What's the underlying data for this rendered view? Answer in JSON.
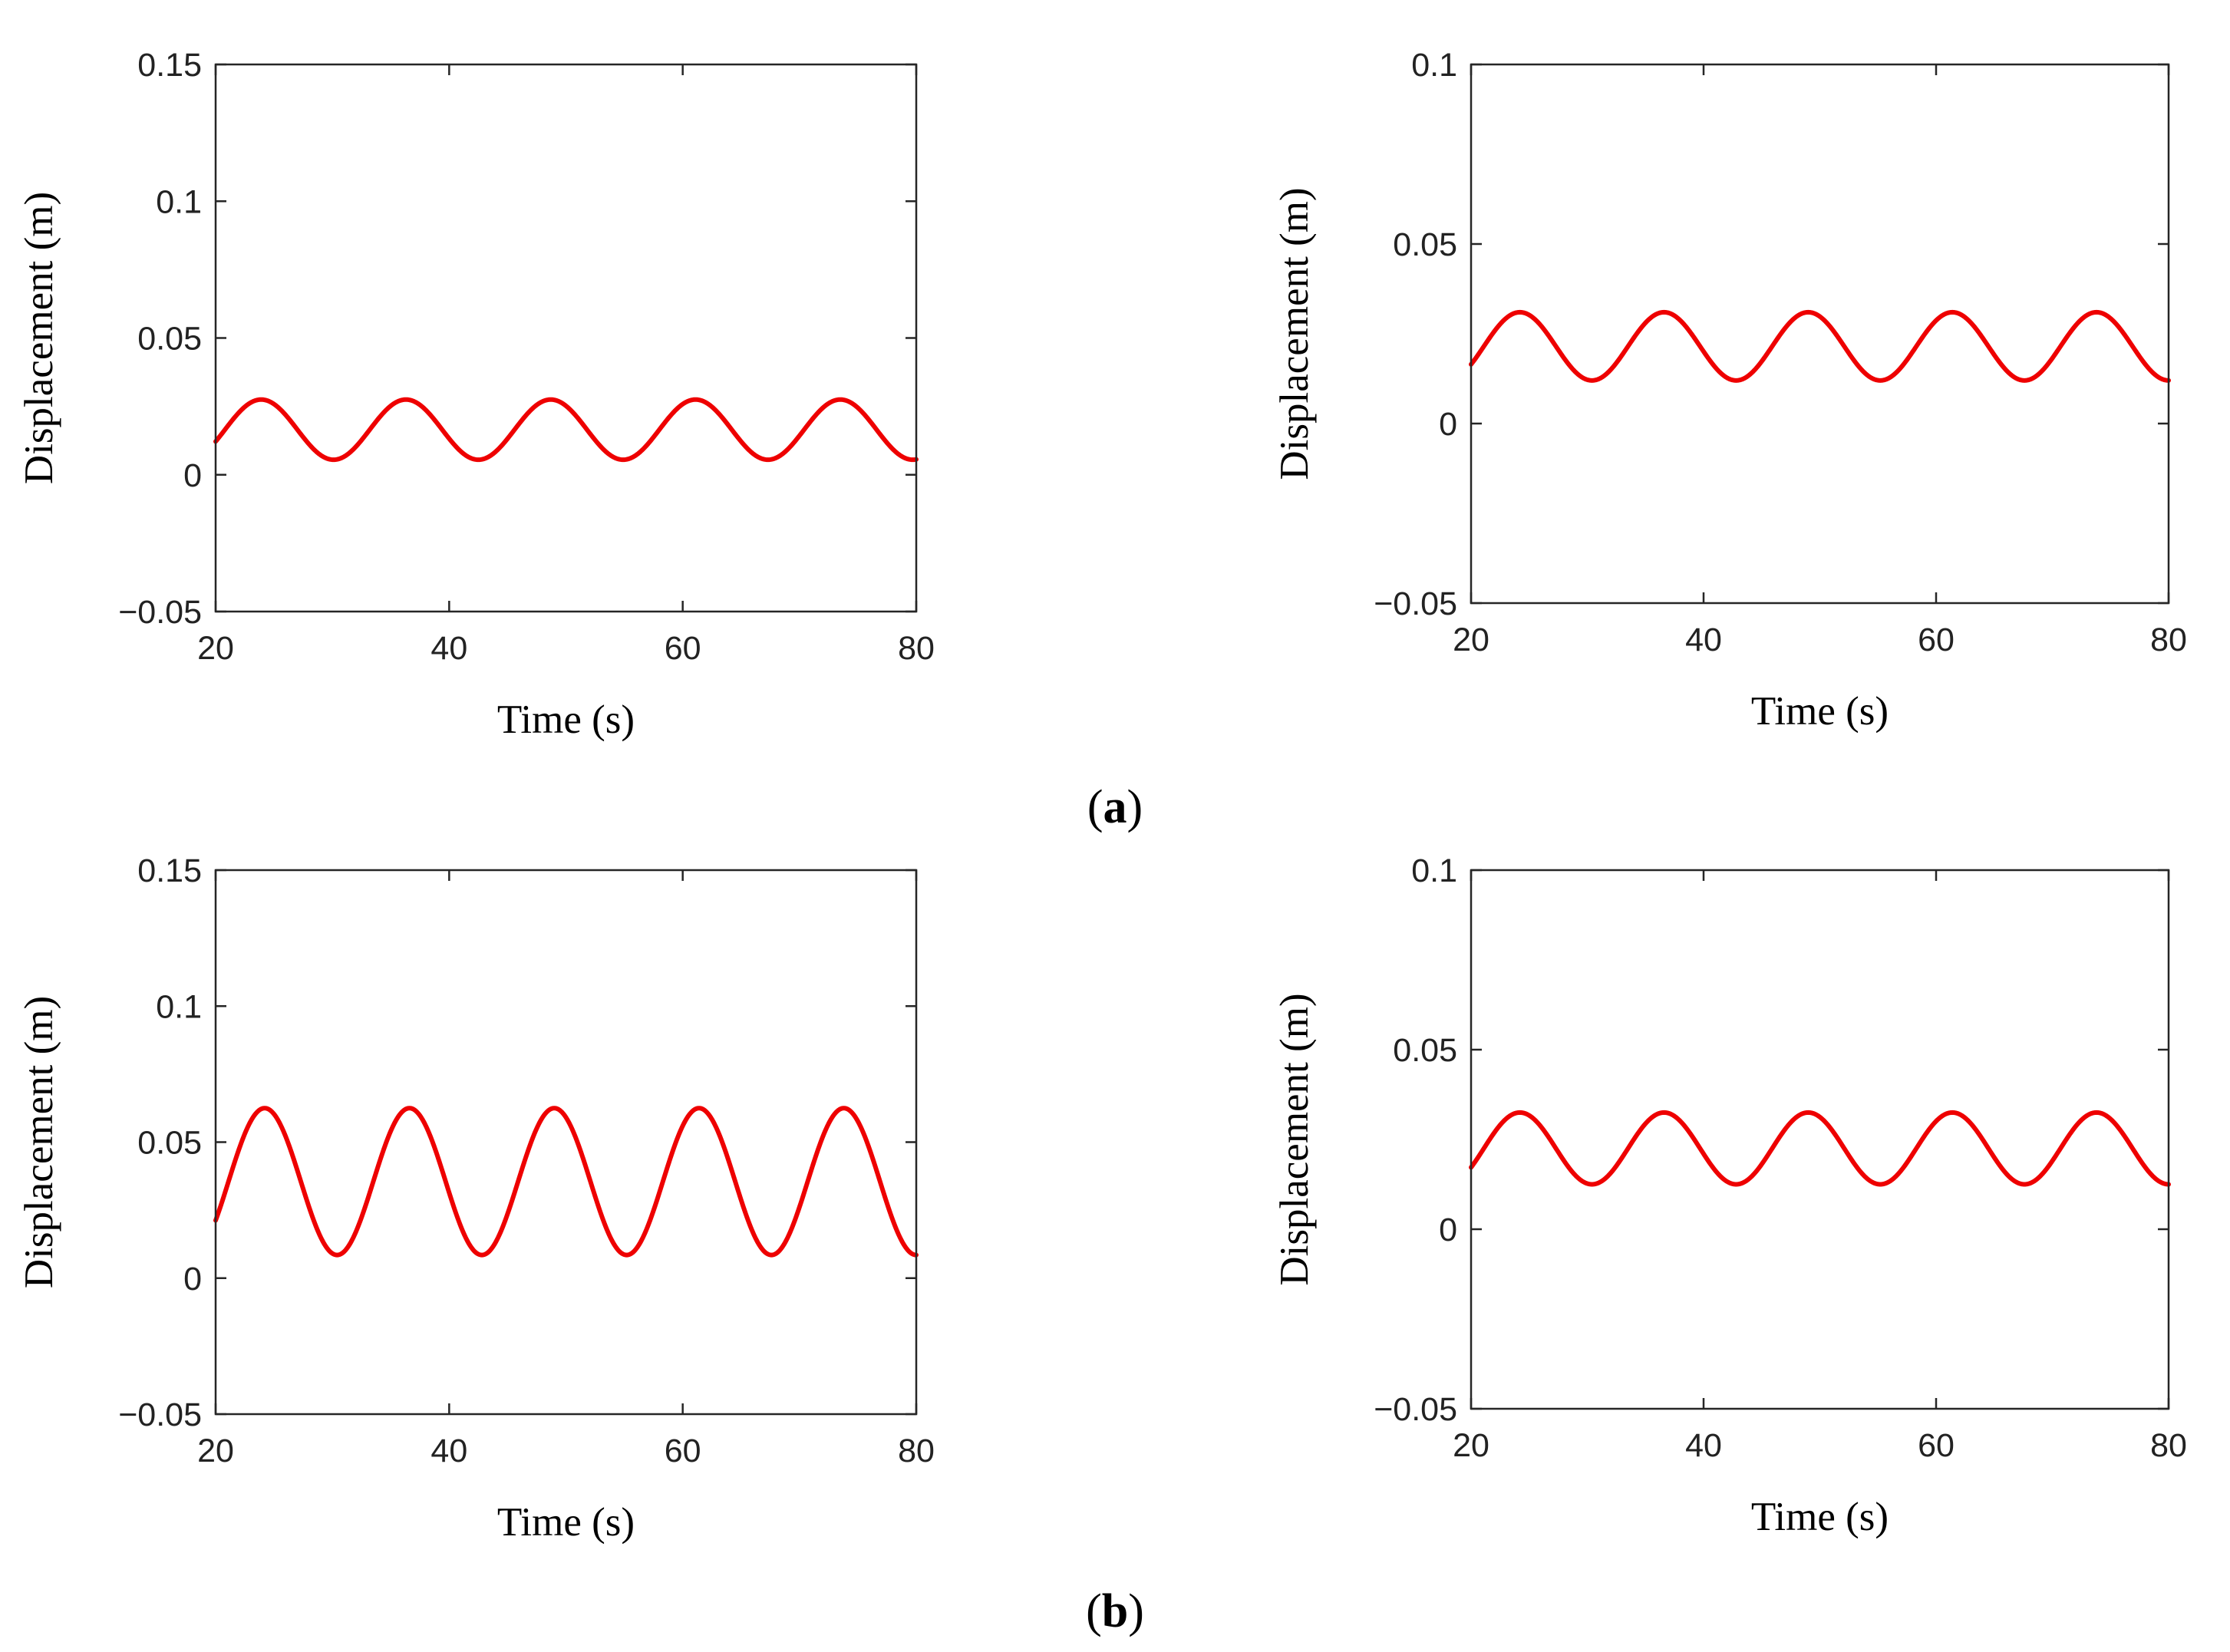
{
  "figure": {
    "labels": [
      {
        "open": "(",
        "letter": "a",
        "close": ")"
      },
      {
        "open": "(",
        "letter": "b",
        "close": ")"
      }
    ]
  },
  "colors": {
    "series": "#ee0000",
    "axis": "#262626",
    "background": "#ffffff"
  },
  "chart_data": [
    {
      "type": "line",
      "panel": "a",
      "position": "left",
      "xlabel": "Time (s)",
      "ylabel": "Displacement (m)",
      "xlim": [
        20,
        80
      ],
      "ylim": [
        -0.05,
        0.15
      ],
      "xticks": [
        20,
        40,
        60,
        80
      ],
      "xtick_labels": [
        "20",
        "40",
        "60",
        "80"
      ],
      "yticks": [
        -0.05,
        0,
        0.05,
        0.1,
        0.15
      ],
      "ytick_labels": [
        "−0.05",
        "0",
        "0.05",
        "0.1",
        "0.15"
      ],
      "grid": false,
      "series": [
        {
          "name": "displacement",
          "model": "sinusoid",
          "mean": 0.0165,
          "amplitude": 0.011,
          "period": 12.4,
          "peak_times": [
            23.9,
            36.3,
            48.7,
            61.1,
            73.5
          ]
        }
      ]
    },
    {
      "type": "line",
      "panel": "a",
      "position": "right",
      "xlabel": "Time (s)",
      "ylabel": "Displacement (m)",
      "xlim": [
        20,
        80
      ],
      "ylim": [
        -0.05,
        0.1
      ],
      "xticks": [
        20,
        40,
        60,
        80
      ],
      "xtick_labels": [
        "20",
        "40",
        "60",
        "80"
      ],
      "yticks": [
        -0.05,
        0,
        0.05,
        0.1
      ],
      "ytick_labels": [
        "−0.05",
        "0",
        "0.05",
        "0.1"
      ],
      "grid": false,
      "series": [
        {
          "name": "displacement",
          "model": "sinusoid",
          "mean": 0.0215,
          "amplitude": 0.0095,
          "period": 12.4,
          "peak_times": [
            24.2,
            36.6,
            49.0,
            61.4,
            73.8
          ]
        }
      ]
    },
    {
      "type": "line",
      "panel": "b",
      "position": "left",
      "xlabel": "Time (s)",
      "ylabel": "Displacement (m)",
      "xlim": [
        20,
        80
      ],
      "ylim": [
        -0.05,
        0.15
      ],
      "xticks": [
        20,
        40,
        60,
        80
      ],
      "xtick_labels": [
        "20",
        "40",
        "60",
        "80"
      ],
      "yticks": [
        -0.05,
        0,
        0.05,
        0.1,
        0.15
      ],
      "ytick_labels": [
        "−0.05",
        "0",
        "0.05",
        "0.1",
        "0.15"
      ],
      "grid": false,
      "series": [
        {
          "name": "displacement",
          "model": "sinusoid",
          "mean": 0.0355,
          "amplitude": 0.027,
          "period": 12.4,
          "peak_times": [
            24.2,
            36.6,
            49.0,
            61.4,
            73.8
          ]
        }
      ]
    },
    {
      "type": "line",
      "panel": "b",
      "position": "right",
      "xlabel": "Time (s)",
      "ylabel": "Displacement (m)",
      "xlim": [
        20,
        80
      ],
      "ylim": [
        -0.05,
        0.1
      ],
      "xticks": [
        20,
        40,
        60,
        80
      ],
      "xtick_labels": [
        "20",
        "40",
        "60",
        "80"
      ],
      "yticks": [
        -0.05,
        0,
        0.05,
        0.1
      ],
      "ytick_labels": [
        "−0.05",
        "0",
        "0.05",
        "0.1"
      ],
      "grid": false,
      "series": [
        {
          "name": "displacement",
          "model": "sinusoid",
          "mean": 0.0225,
          "amplitude": 0.01,
          "period": 12.4,
          "peak_times": [
            24.2,
            36.6,
            49.0,
            61.4,
            73.8
          ]
        }
      ]
    }
  ]
}
